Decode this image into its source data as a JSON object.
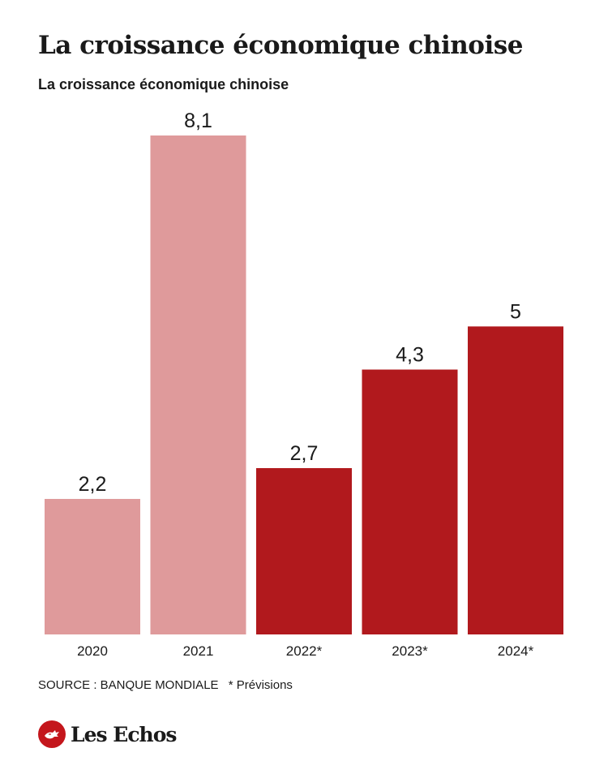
{
  "header": {
    "title": "La croissance économique chinoise",
    "subtitle": "La croissance économique chinoise"
  },
  "chart_data": {
    "type": "bar",
    "categories": [
      "2020",
      "2021",
      "2022*",
      "2023*",
      "2024*"
    ],
    "values": [
      2.2,
      8.1,
      2.7,
      4.3,
      5
    ],
    "value_labels": [
      "2,2",
      "8,1",
      "2,7",
      "4,3",
      "5"
    ],
    "ylim": [
      0,
      8.1
    ],
    "grid": false,
    "colors": {
      "actual": "#df9a9b",
      "forecast": "#b1191d"
    },
    "bar_kind": [
      "actual",
      "actual",
      "forecast",
      "forecast",
      "forecast"
    ]
  },
  "footer": {
    "source": "SOURCE : BANQUE MONDIALE",
    "note": "* Prévisions"
  },
  "brand": {
    "name": "Les Echos",
    "logo_icon": "les-echos-emblem-icon"
  }
}
